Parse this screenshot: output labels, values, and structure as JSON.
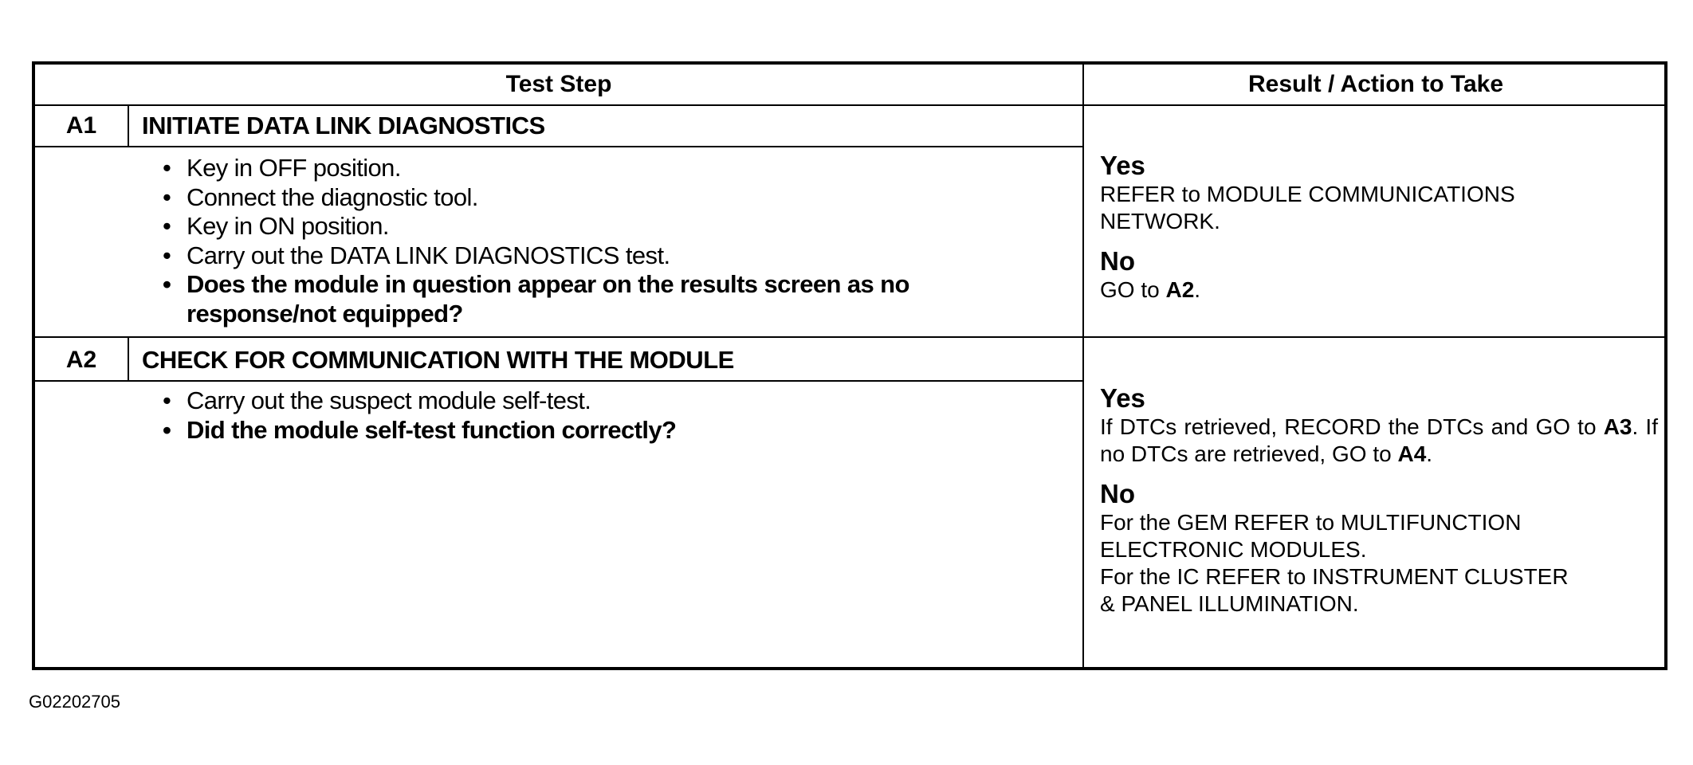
{
  "header": {
    "test_step": "Test Step",
    "result": "Result / Action to Take"
  },
  "steps": [
    {
      "id": "A1",
      "title": "INITIATE DATA LINK DIAGNOSTICS",
      "items": [
        {
          "text": "Key in OFF position.",
          "bold": false
        },
        {
          "text": "Connect the diagnostic tool.",
          "bold": false
        },
        {
          "text": "Key in ON position.",
          "bold": false
        },
        {
          "text": "Carry out the DATA LINK DIAGNOSTICS test.",
          "bold": false
        },
        {
          "text": "Does the module in question appear on the results screen as no response/not equipped?",
          "bold": true
        }
      ],
      "yes_label": "Yes",
      "yes_text": "REFER to MODULE COMMUNICATIONS NETWORK.",
      "no_label": "No",
      "no_prefix": "GO to ",
      "no_ref": "A2",
      "no_suffix": "."
    },
    {
      "id": "A2",
      "title": "CHECK FOR COMMUNICATION WITH THE MODULE",
      "items": [
        {
          "text": "Carry out the suspect module self-test.",
          "bold": false
        },
        {
          "text": "Did the module self-test function correctly?",
          "bold": true
        }
      ],
      "yes_label": "Yes",
      "yes_part1": "If DTCs retrieved, RECORD the DTCs and GO to ",
      "yes_ref1": "A3",
      "yes_part2": ". If no DTCs are retrieved, GO to ",
      "yes_ref2": "A4",
      "yes_part3": ".",
      "no_label": "No",
      "no_line1": "For the GEM REFER to MULTIFUNCTION ELECTRONIC MODULES.",
      "no_line2": "For the IC REFER to INSTRUMENT CLUSTER & PANEL ILLUMINATION."
    }
  ],
  "figure_id": "G02202705"
}
